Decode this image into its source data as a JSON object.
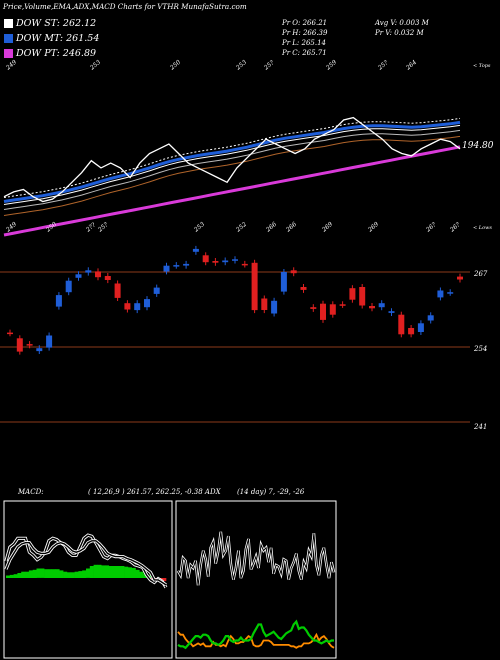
{
  "header": {
    "title": "Price,Volume,EMA,ADX,MACD Charts for VTHR MunafaSutra.com",
    "dow_st": "DOW ST: 262.12",
    "dow_mt": "DOW MT: 261.54",
    "dow_pt": "DOW PT: 246.89",
    "pr_o": "Pr O: 266.21",
    "pr_h": "Pr H: 266.39",
    "pr_l": "Pr L: 265.14",
    "pr_c": "Pr C: 265.71",
    "avg_v": "Avg V: 0.003 M",
    "pr_v": "Pr V: 0.032 M"
  },
  "colors": {
    "background": "#000000",
    "st_line": "#ffffff",
    "mt_line": "#1f5ed8",
    "pt_line": "#d93ad9",
    "candle_up": "#1f5ed8",
    "candle_down": "#e02020",
    "level_line": "#8b3a1a",
    "macd_hist": "#00cc00",
    "adx_plus": "#00cc00",
    "adx_minus": "#ff8c00"
  },
  "ema_panel": {
    "top_labels": [
      "249",
      "253",
      "250",
      "253",
      "25?",
      "259",
      "25?",
      "264"
    ],
    "bottom_labels": [
      "249",
      "250",
      "2??",
      "25?",
      "253",
      "252",
      "266",
      "266",
      "269",
      "269",
      "26?",
      "26?"
    ],
    "right_top": "< Tops",
    "right_bottom": "< Lows",
    "ema_value": "194.80"
  },
  "candle_panel": {
    "levels": [
      "267",
      "254",
      "241"
    ]
  },
  "macd_panel": {
    "label": "MACD:",
    "values": "( 12,26,9 ) 261.57, 262.25, -0.38 ADX"
  },
  "adx_panel": {
    "values": "(14 day) 7, -29, -26"
  },
  "chart_data": [
    {
      "type": "line",
      "title": "EMA",
      "series": [
        {
          "values": [
            246,
            247,
            247.5,
            246,
            245,
            245.5,
            247,
            249,
            251,
            253.5,
            252,
            253,
            252,
            250,
            253,
            255,
            256,
            257,
            255,
            253,
            252,
            251,
            250,
            249,
            252,
            254,
            256,
            258,
            257,
            256,
            255,
            256,
            258,
            259,
            260,
            262,
            262.5,
            261,
            259.5,
            258,
            256,
            255,
            254.5,
            256,
            257,
            258,
            257.5,
            256
          ]
        },
        {
          "values": [
            245,
            245.3,
            245.6,
            245.9,
            246.2,
            246.6,
            247,
            247.5,
            248,
            248.6,
            249.2,
            249.8,
            250.3,
            250.8,
            251.4,
            252,
            252.7,
            253.3,
            253.8,
            254.2,
            254.6,
            254.9,
            255.2,
            255.5,
            255.9,
            256.3,
            256.8,
            257.3,
            257.8,
            258.2,
            258.5,
            258.8,
            259.1,
            259.4,
            259.8,
            260.2,
            260.5,
            260.7,
            260.8,
            260.8,
            260.7,
            260.6,
            260.5,
            260.6,
            260.8,
            261,
            261.2,
            261.5
          ]
        },
        {
          "values": [
            238,
            238.4,
            238.8,
            239.2,
            239.6,
            240,
            240.4,
            240.8,
            241.2,
            241.6,
            242,
            242.4,
            242.8,
            243.2,
            243.6,
            244,
            244.4,
            244.8,
            245.2,
            245.6,
            246,
            246.4,
            246.8,
            247.2,
            247.6,
            248,
            248.4,
            248.8,
            249.2,
            249.6,
            250,
            250.4,
            250.8,
            251.2,
            251.6,
            252,
            252.4,
            252.8,
            253.2,
            253.6,
            254,
            254.4,
            254.8,
            255.2,
            255.6,
            256,
            256.4,
            246.89
          ]
        }
      ]
    },
    {
      "type": "bar",
      "title": "Candles",
      "candles": [
        {
          "o": 256.5,
          "c": 256.4
        },
        {
          "o": 255.5,
          "c": 253.2
        },
        {
          "o": 254.5,
          "c": 254.3
        },
        {
          "o": 253.3,
          "c": 253.8
        },
        {
          "o": 253.9,
          "c": 256
        },
        {
          "o": 261,
          "c": 263
        },
        {
          "o": 263.5,
          "c": 265.5
        },
        {
          "o": 266,
          "c": 266.6
        },
        {
          "o": 266.9,
          "c": 267.3
        },
        {
          "o": 267.1,
          "c": 266.1
        },
        {
          "o": 266.3,
          "c": 265.6
        },
        {
          "o": 265,
          "c": 262.5
        },
        {
          "o": 261.6,
          "c": 260.5
        },
        {
          "o": 260.4,
          "c": 261.6
        },
        {
          "o": 260.9,
          "c": 262.3
        },
        {
          "o": 263.2,
          "c": 264.3
        },
        {
          "o": 267.1,
          "c": 268.1
        },
        {
          "o": 268.1,
          "c": 268.2
        },
        {
          "o": 268.1,
          "c": 268.4
        },
        {
          "o": 270.5,
          "c": 271
        },
        {
          "o": 269.9,
          "c": 268.7
        },
        {
          "o": 268.9,
          "c": 268.6
        },
        {
          "o": 268.7,
          "c": 269
        },
        {
          "o": 269,
          "c": 269.2
        },
        {
          "o": 268.4,
          "c": 268.3
        },
        {
          "o": 268.6,
          "c": 260.4
        },
        {
          "o": 262.4,
          "c": 260.4
        },
        {
          "o": 259.8,
          "c": 262
        },
        {
          "o": 263.6,
          "c": 267
        },
        {
          "o": 267.3,
          "c": 266.8
        },
        {
          "o": 264.4,
          "c": 263.9
        },
        {
          "o": 260.9,
          "c": 260.6
        },
        {
          "o": 261.5,
          "c": 258.7
        },
        {
          "o": 261.4,
          "c": 259.6
        },
        {
          "o": 261.4,
          "c": 261.3
        },
        {
          "o": 264.2,
          "c": 262.2
        },
        {
          "o": 264.4,
          "c": 261.2
        },
        {
          "o": 261.1,
          "c": 260.7
        },
        {
          "o": 260.9,
          "c": 261.6
        },
        {
          "o": 259.9,
          "c": 260.2
        },
        {
          "o": 259.6,
          "c": 256.2
        },
        {
          "o": 257.3,
          "c": 256.2
        },
        {
          "o": 256.6,
          "c": 258.1
        },
        {
          "o": 258.6,
          "c": 259.5
        },
        {
          "o": 262.6,
          "c": 263.8
        },
        {
          "o": 263.4,
          "c": 263.5
        },
        {
          "o": 266.2,
          "c": 265.7
        }
      ]
    },
    {
      "type": "bar",
      "title": "MACD",
      "values": [
        0.4,
        0.5,
        0.6,
        0.8,
        1.0,
        1.0,
        1.2,
        1.3,
        1.5,
        1.5,
        1.4,
        1.4,
        1.4,
        1.4,
        1.2,
        1.0,
        0.9,
        0.9,
        1.0,
        1.1,
        1.2,
        1.5,
        1.9,
        2.1,
        2.1,
        2.0,
        2.0,
        1.9,
        1.9,
        1.9,
        1.9,
        1.8,
        1.7,
        1.6,
        1.3,
        1.0,
        0.7,
        0.4,
        -0.2,
        -0.3,
        -0.3,
        -0.5
      ],
      "line1": [
        2.7,
        4.9,
        5.4,
        6.3,
        6.3,
        6.3,
        4.1,
        3.6,
        2.9,
        3.3,
        4.1,
        5.9,
        6.3,
        6.1,
        5.6,
        5.2,
        4.1,
        3.6,
        3.6,
        4.9,
        6.3,
        6.8,
        6.6,
        5.6,
        4.5,
        3.4,
        3.1,
        3.6,
        3.6,
        3.4,
        3.1,
        2.9,
        2.6,
        2.1,
        1.9,
        1.7,
        0.5,
        -0.3,
        -0.7,
        -0.1,
        -0.5,
        -1.5
      ],
      "line2": [
        1.4,
        2.9,
        3.9,
        4.9,
        5.4,
        5.6,
        5.6,
        4.7,
        4.1,
        3.9,
        3.9,
        4.1,
        4.9,
        5.4,
        5.6,
        5.4,
        4.9,
        4.3,
        4.1,
        4.3,
        4.7,
        5.6,
        5.9,
        5.9,
        5.4,
        4.7,
        3.9,
        3.6,
        3.4,
        3.4,
        3.4,
        3.1,
        2.9,
        2.6,
        2.3,
        1.9,
        1.4,
        0.9,
        -0.3,
        -0.3,
        -0.7,
        -1.1
      ]
    },
    {
      "type": "line",
      "title": "ADX",
      "series": [
        {
          "values": [
            58,
            55,
            67,
            65,
            53,
            62,
            60,
            65,
            48,
            62,
            72,
            66,
            54,
            74,
            78,
            63,
            72,
            85,
            69,
            72,
            82,
            63,
            52,
            60,
            72,
            53,
            58,
            73,
            80,
            59,
            63,
            68,
            60,
            76,
            72,
            74,
            64,
            74,
            56,
            62,
            61,
            56,
            66,
            65,
            52,
            60,
            64,
            70,
            58,
            52,
            64,
            60,
            72,
            68,
            84,
            62,
            55,
            69,
            74,
            62,
            53,
            64,
            57
          ]
        },
        {
          "values": [
            7,
            6,
            6,
            5,
            7,
            9,
            11,
            13,
            13,
            12,
            14,
            14,
            13,
            10,
            8,
            8,
            7,
            8,
            10,
            13,
            13,
            10,
            9,
            10,
            10,
            12,
            10,
            10,
            10,
            11,
            15,
            18,
            21,
            21,
            16,
            13,
            14,
            15,
            16,
            14,
            12,
            11,
            13,
            15,
            16,
            17,
            21,
            23,
            18,
            19,
            19,
            17,
            14,
            12,
            10,
            10,
            9,
            8,
            9,
            10,
            9,
            10,
            10
          ]
        },
        {
          "values": [
            16,
            14,
            14,
            11,
            9,
            8,
            6,
            7,
            8,
            7,
            8,
            6,
            6,
            6,
            9,
            7,
            7,
            6,
            7,
            6,
            10,
            13,
            11,
            8,
            8,
            9,
            9,
            11,
            13,
            12,
            7,
            6,
            6,
            7,
            10,
            10,
            10,
            9,
            7,
            7,
            7,
            7,
            7,
            7,
            7,
            6,
            6,
            5,
            6,
            6,
            8,
            8,
            8,
            9,
            11,
            14,
            10,
            12,
            13,
            11,
            8,
            6,
            5
          ]
        }
      ]
    }
  ]
}
